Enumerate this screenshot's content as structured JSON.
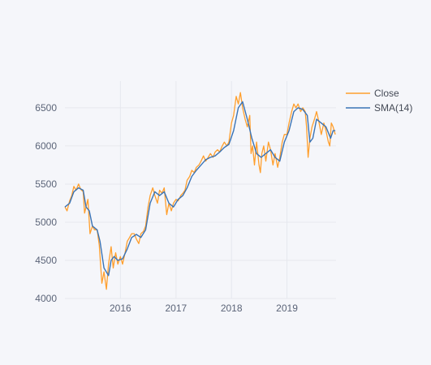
{
  "chart_data": {
    "type": "line",
    "title": "",
    "xlabel": "",
    "ylabel": "",
    "x_range": [
      "2015-01-01",
      "2019-11-20"
    ],
    "ylim": [
      4000,
      6850
    ],
    "y_ticks": [
      4000,
      4500,
      5000,
      5500,
      6000,
      6500
    ],
    "x_ticks": [
      {
        "date": "2016-01-01",
        "label": "2016"
      },
      {
        "date": "2017-01-01",
        "label": "2017"
      },
      {
        "date": "2018-01-01",
        "label": "2018"
      },
      {
        "date": "2019-01-01",
        "label": "2019"
      }
    ],
    "grid": true,
    "legend": {
      "placement": "top-right",
      "entries": [
        "Close",
        "SMA(14)"
      ]
    },
    "series": [
      {
        "name": "Close",
        "color": "#ff9f2d",
        "points": [
          [
            "2015-01-01",
            5200
          ],
          [
            "2015-01-15",
            5150
          ],
          [
            "2015-02-01",
            5280
          ],
          [
            "2015-02-15",
            5350
          ],
          [
            "2015-03-01",
            5470
          ],
          [
            "2015-03-15",
            5420
          ],
          [
            "2015-04-01",
            5500
          ],
          [
            "2015-04-15",
            5430
          ],
          [
            "2015-05-01",
            5400
          ],
          [
            "2015-05-10",
            5120
          ],
          [
            "2015-05-20",
            5200
          ],
          [
            "2015-06-01",
            5300
          ],
          [
            "2015-06-15",
            4850
          ],
          [
            "2015-07-01",
            4950
          ],
          [
            "2015-07-15",
            4900
          ],
          [
            "2015-08-01",
            4900
          ],
          [
            "2015-08-15",
            4700
          ],
          [
            "2015-09-01",
            4200
          ],
          [
            "2015-09-15",
            4350
          ],
          [
            "2015-10-01",
            4120
          ],
          [
            "2015-10-15",
            4450
          ],
          [
            "2015-11-01",
            4680
          ],
          [
            "2015-11-15",
            4400
          ],
          [
            "2015-12-01",
            4600
          ],
          [
            "2015-12-15",
            4450
          ],
          [
            "2016-01-01",
            4550
          ],
          [
            "2016-01-15",
            4450
          ],
          [
            "2016-02-01",
            4600
          ],
          [
            "2016-02-15",
            4750
          ],
          [
            "2016-03-01",
            4800
          ],
          [
            "2016-03-15",
            4850
          ],
          [
            "2016-04-01",
            4850
          ],
          [
            "2016-04-15",
            4780
          ],
          [
            "2016-05-01",
            4720
          ],
          [
            "2016-05-15",
            4850
          ],
          [
            "2016-06-01",
            4880
          ],
          [
            "2016-06-15",
            4950
          ],
          [
            "2016-07-01",
            5200
          ],
          [
            "2016-07-15",
            5350
          ],
          [
            "2016-08-01",
            5450
          ],
          [
            "2016-08-15",
            5350
          ],
          [
            "2016-09-01",
            5250
          ],
          [
            "2016-09-15",
            5420
          ],
          [
            "2016-10-01",
            5380
          ],
          [
            "2016-10-15",
            5450
          ],
          [
            "2016-11-01",
            5100
          ],
          [
            "2016-11-15",
            5250
          ],
          [
            "2016-12-01",
            5150
          ],
          [
            "2016-12-15",
            5250
          ],
          [
            "2017-01-01",
            5300
          ],
          [
            "2017-01-15",
            5280
          ],
          [
            "2017-02-01",
            5350
          ],
          [
            "2017-02-15",
            5380
          ],
          [
            "2017-03-01",
            5420
          ],
          [
            "2017-03-15",
            5550
          ],
          [
            "2017-04-01",
            5600
          ],
          [
            "2017-04-15",
            5680
          ],
          [
            "2017-05-01",
            5650
          ],
          [
            "2017-05-15",
            5720
          ],
          [
            "2017-06-01",
            5750
          ],
          [
            "2017-06-15",
            5800
          ],
          [
            "2017-07-01",
            5870
          ],
          [
            "2017-07-15",
            5800
          ],
          [
            "2017-08-01",
            5850
          ],
          [
            "2017-08-15",
            5900
          ],
          [
            "2017-09-01",
            5850
          ],
          [
            "2017-09-15",
            5920
          ],
          [
            "2017-10-01",
            5950
          ],
          [
            "2017-10-15",
            5920
          ],
          [
            "2017-11-01",
            6000
          ],
          [
            "2017-11-15",
            6050
          ],
          [
            "2017-12-01",
            6000
          ],
          [
            "2017-12-15",
            6050
          ],
          [
            "2018-01-01",
            6300
          ],
          [
            "2018-01-15",
            6400
          ],
          [
            "2018-02-01",
            6650
          ],
          [
            "2018-02-15",
            6550
          ],
          [
            "2018-03-01",
            6700
          ],
          [
            "2018-03-15",
            6500
          ],
          [
            "2018-04-01",
            6350
          ],
          [
            "2018-04-15",
            6250
          ],
          [
            "2018-05-01",
            6400
          ],
          [
            "2018-05-10",
            5900
          ],
          [
            "2018-05-20",
            6000
          ],
          [
            "2018-06-01",
            5750
          ],
          [
            "2018-06-15",
            6050
          ],
          [
            "2018-07-01",
            5750
          ],
          [
            "2018-07-10",
            5650
          ],
          [
            "2018-07-20",
            5900
          ],
          [
            "2018-08-01",
            6000
          ],
          [
            "2018-08-15",
            5800
          ],
          [
            "2018-09-01",
            6050
          ],
          [
            "2018-09-15",
            5950
          ],
          [
            "2018-10-01",
            5750
          ],
          [
            "2018-10-15",
            5900
          ],
          [
            "2018-11-01",
            5720
          ],
          [
            "2018-11-15",
            5850
          ],
          [
            "2018-12-01",
            6050
          ],
          [
            "2018-12-15",
            6150
          ],
          [
            "2019-01-01",
            6150
          ],
          [
            "2019-01-15",
            6300
          ],
          [
            "2019-02-01",
            6450
          ],
          [
            "2019-02-15",
            6550
          ],
          [
            "2019-03-01",
            6500
          ],
          [
            "2019-03-15",
            6550
          ],
          [
            "2019-04-01",
            6450
          ],
          [
            "2019-04-15",
            6500
          ],
          [
            "2019-05-01",
            6450
          ],
          [
            "2019-05-10",
            6250
          ],
          [
            "2019-05-20",
            5850
          ],
          [
            "2019-06-01",
            6100
          ],
          [
            "2019-06-15",
            6250
          ],
          [
            "2019-07-01",
            6350
          ],
          [
            "2019-07-15",
            6450
          ],
          [
            "2019-08-01",
            6300
          ],
          [
            "2019-08-15",
            6150
          ],
          [
            "2019-09-01",
            6300
          ],
          [
            "2019-09-15",
            6200
          ],
          [
            "2019-10-01",
            6050
          ],
          [
            "2019-10-10",
            6000
          ],
          [
            "2019-10-20",
            6300
          ],
          [
            "2019-11-01",
            6250
          ],
          [
            "2019-11-15",
            6150
          ]
        ]
      },
      {
        "name": "SMA(14)",
        "color": "#3a73b5",
        "points": [
          [
            "2015-01-01",
            5200
          ],
          [
            "2015-02-01",
            5250
          ],
          [
            "2015-03-01",
            5400
          ],
          [
            "2015-04-01",
            5450
          ],
          [
            "2015-05-01",
            5420
          ],
          [
            "2015-05-20",
            5200
          ],
          [
            "2015-06-10",
            5150
          ],
          [
            "2015-07-01",
            4950
          ],
          [
            "2015-08-01",
            4900
          ],
          [
            "2015-08-20",
            4750
          ],
          [
            "2015-09-15",
            4400
          ],
          [
            "2015-10-15",
            4300
          ],
          [
            "2015-11-01",
            4500
          ],
          [
            "2015-11-20",
            4550
          ],
          [
            "2015-12-15",
            4500
          ],
          [
            "2016-01-15",
            4520
          ],
          [
            "2016-02-15",
            4650
          ],
          [
            "2016-03-15",
            4800
          ],
          [
            "2016-04-15",
            4840
          ],
          [
            "2016-05-15",
            4800
          ],
          [
            "2016-06-15",
            4900
          ],
          [
            "2016-07-15",
            5250
          ],
          [
            "2016-08-15",
            5400
          ],
          [
            "2016-09-15",
            5350
          ],
          [
            "2016-10-15",
            5400
          ],
          [
            "2016-11-15",
            5250
          ],
          [
            "2016-12-15",
            5200
          ],
          [
            "2017-01-15",
            5300
          ],
          [
            "2017-02-15",
            5350
          ],
          [
            "2017-03-15",
            5450
          ],
          [
            "2017-04-15",
            5600
          ],
          [
            "2017-05-15",
            5680
          ],
          [
            "2017-06-15",
            5750
          ],
          [
            "2017-07-15",
            5820
          ],
          [
            "2017-08-15",
            5850
          ],
          [
            "2017-09-15",
            5870
          ],
          [
            "2017-10-15",
            5920
          ],
          [
            "2017-11-15",
            5980
          ],
          [
            "2017-12-15",
            6020
          ],
          [
            "2018-01-15",
            6200
          ],
          [
            "2018-02-15",
            6500
          ],
          [
            "2018-03-15",
            6580
          ],
          [
            "2018-04-15",
            6350
          ],
          [
            "2018-05-15",
            6100
          ],
          [
            "2018-06-15",
            5900
          ],
          [
            "2018-07-15",
            5850
          ],
          [
            "2018-08-15",
            5900
          ],
          [
            "2018-09-15",
            5950
          ],
          [
            "2018-10-15",
            5850
          ],
          [
            "2018-11-15",
            5800
          ],
          [
            "2018-12-15",
            6050
          ],
          [
            "2019-01-15",
            6200
          ],
          [
            "2019-02-15",
            6450
          ],
          [
            "2019-03-15",
            6500
          ],
          [
            "2019-04-15",
            6480
          ],
          [
            "2019-05-15",
            6400
          ],
          [
            "2019-06-01",
            6050
          ],
          [
            "2019-06-20",
            6100
          ],
          [
            "2019-07-15",
            6350
          ],
          [
            "2019-08-15",
            6300
          ],
          [
            "2019-09-15",
            6250
          ],
          [
            "2019-10-15",
            6100
          ],
          [
            "2019-11-01",
            6200
          ],
          [
            "2019-11-15",
            6200
          ]
        ]
      }
    ]
  }
}
